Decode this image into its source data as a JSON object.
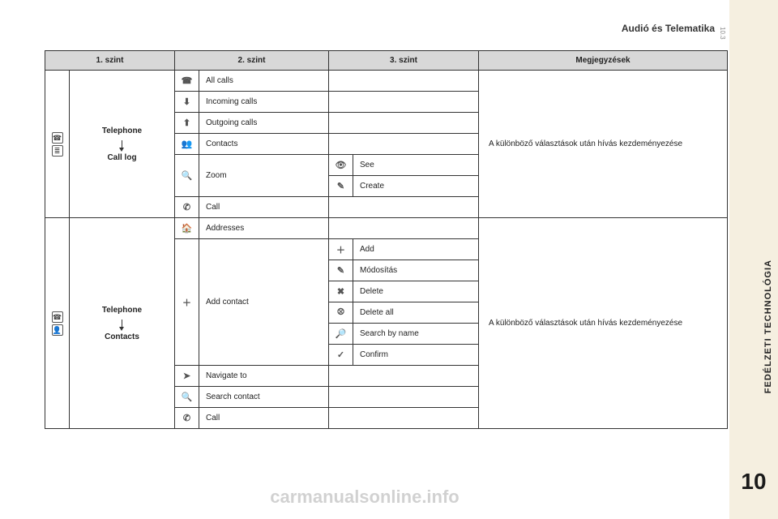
{
  "header": {
    "title": "Audió és Telematika",
    "page_num": "10.3"
  },
  "sidebar": {
    "vertical_label": "FEDÉLZETI TECHNOLÓGIA",
    "chapter_number": "10"
  },
  "columns": {
    "c1": "1. szint",
    "c2": "2. szint",
    "c3": "3. szint",
    "c4": "Megjegyzések"
  },
  "block_a": {
    "path_top": "Telephone",
    "path_bottom": "Call log",
    "rows": {
      "r1": {
        "icon": "☎",
        "label": "All calls"
      },
      "r2": {
        "icon": "⬇",
        "label": "Incoming calls"
      },
      "r3": {
        "icon": "⬆",
        "label": "Outgoing calls"
      },
      "r4": {
        "icon": "👥",
        "label": "Contacts"
      },
      "zoom": {
        "icon": "🔍",
        "label": "Zoom",
        "sub1_icon": "👁",
        "sub1": "See",
        "sub2_icon": "✎",
        "sub2": "Create"
      },
      "r6": {
        "icon": "✆",
        "label": "Call"
      }
    },
    "note": "A különböző választások után hívás kezdeményezése"
  },
  "block_b": {
    "path_top": "Telephone",
    "path_bottom": "Contacts",
    "rows": {
      "r1": {
        "icon": "🏠",
        "label": "Addresses"
      },
      "addc": {
        "icon": "＋",
        "label": "Add contact",
        "sub1_icon": "＋",
        "sub1": "Add",
        "sub2_icon": "✎",
        "sub2": "Módosítás",
        "sub3_icon": "✖",
        "sub3": "Delete",
        "sub4_icon": "⮾",
        "sub4": "Delete all",
        "sub5_icon": "🔎",
        "sub5": "Search by name",
        "sub6_icon": "✓",
        "sub6": "Confirm"
      },
      "r3": {
        "icon": "➤",
        "label": "Navigate to"
      },
      "r4": {
        "icon": "🔍",
        "label": "Search contact"
      },
      "r5": {
        "icon": "✆",
        "label": "Call"
      }
    },
    "note": "A különböző választások után hívás kezdeményezése"
  },
  "watermark": "carmanualsonline.info"
}
